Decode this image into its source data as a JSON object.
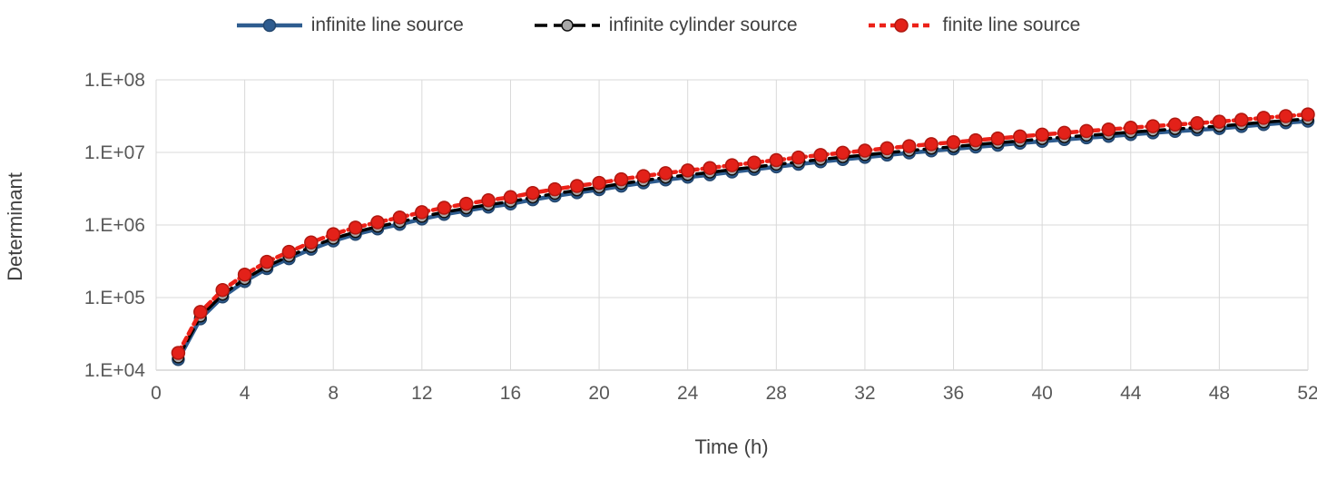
{
  "chart_data": {
    "type": "line",
    "title": "",
    "xlabel": "Time (h)",
    "ylabel": "Determinant",
    "y_scale": "log",
    "grid": true,
    "legend_position": "top",
    "xlim": [
      0,
      52
    ],
    "x_ticks": [
      0,
      4,
      8,
      12,
      16,
      20,
      24,
      28,
      32,
      36,
      40,
      44,
      48,
      52
    ],
    "y_ticks": [
      "1.E+04",
      "1.E+05",
      "1.E+06",
      "1.E+07",
      "1.E+08"
    ],
    "y_log_range": [
      4,
      8
    ],
    "x": [
      1,
      2,
      3,
      4,
      5,
      6,
      7,
      8,
      9,
      10,
      11,
      12,
      13,
      14,
      15,
      16,
      17,
      18,
      19,
      20,
      21,
      22,
      23,
      24,
      25,
      26,
      27,
      28,
      29,
      30,
      31,
      32,
      33,
      34,
      35,
      36,
      37,
      38,
      39,
      40,
      41,
      42,
      43,
      44,
      45,
      46,
      47,
      48,
      49,
      50,
      51,
      52
    ],
    "series": [
      {
        "name": "infinite line source",
        "color": "#2E5C8F",
        "dash": "solid",
        "line_width": 4.5,
        "marker_fill": "#2E5C8F",
        "marker_stroke": "#23466D",
        "marker_radius": 6.5,
        "values": [
          14000,
          51000,
          102000,
          167000,
          251000,
          344000,
          465000,
          605000,
          744000,
          884000,
          1020000,
          1210000,
          1400000,
          1580000,
          1770000,
          1950000,
          2230000,
          2510000,
          2790000,
          3070000,
          3440000,
          3810000,
          4190000,
          4560000,
          4930000,
          5390000,
          5860000,
          6320000,
          6880000,
          7440000,
          8000000,
          8560000,
          9210000,
          9860000,
          10500000,
          11200000,
          11900000,
          12600000,
          13400000,
          14200000,
          15100000,
          15900000,
          16700000,
          17700000,
          18600000,
          19500000,
          20500000,
          21400000,
          22800000,
          24200000,
          25600000,
          27000000
        ]
      },
      {
        "name": "infinite cylinder source",
        "color": "#000000",
        "dash": "14 7",
        "line_width": 3.5,
        "marker_fill": "#A8A8A8",
        "marker_stroke": "#111111",
        "marker_radius": 6,
        "values": [
          15000,
          55000,
          110000,
          180000,
          270000,
          370000,
          500000,
          650000,
          800000,
          950000,
          1100000,
          1300000,
          1500000,
          1700000,
          1900000,
          2100000,
          2400000,
          2700000,
          3000000,
          3300000,
          3700000,
          4100000,
          4500000,
          4900000,
          5300000,
          5800000,
          6300000,
          6800000,
          7400000,
          8000000,
          8600000,
          9200000,
          9900000,
          10600000,
          11300000,
          12000000,
          12800000,
          13600000,
          14400000,
          15300000,
          16200000,
          17100000,
          18000000,
          19000000,
          20000000,
          21000000,
          22000000,
          23000000,
          24500000,
          26000000,
          27500000,
          29000000
        ]
      },
      {
        "name": "finite line source",
        "color": "#EC2118",
        "dash": "7 5",
        "line_width": 4.5,
        "marker_fill": "#E32119",
        "marker_stroke": "#B01810",
        "marker_radius": 7,
        "values": [
          17300,
          63300,
          127000,
          207000,
          311000,
          426000,
          575000,
          748000,
          920000,
          1090000,
          1270000,
          1500000,
          1730000,
          1960000,
          2190000,
          2420000,
          2760000,
          3110000,
          3450000,
          3800000,
          4260000,
          4720000,
          5180000,
          5640000,
          6100000,
          6670000,
          7250000,
          7820000,
          8510000,
          9200000,
          9890000,
          10600000,
          11400000,
          12200000,
          13000000,
          13800000,
          14700000,
          15600000,
          16600000,
          17600000,
          18600000,
          19700000,
          20700000,
          21900000,
          23000000,
          24200000,
          25300000,
          26500000,
          28200000,
          29900000,
          31600000,
          33400000
        ]
      }
    ]
  }
}
